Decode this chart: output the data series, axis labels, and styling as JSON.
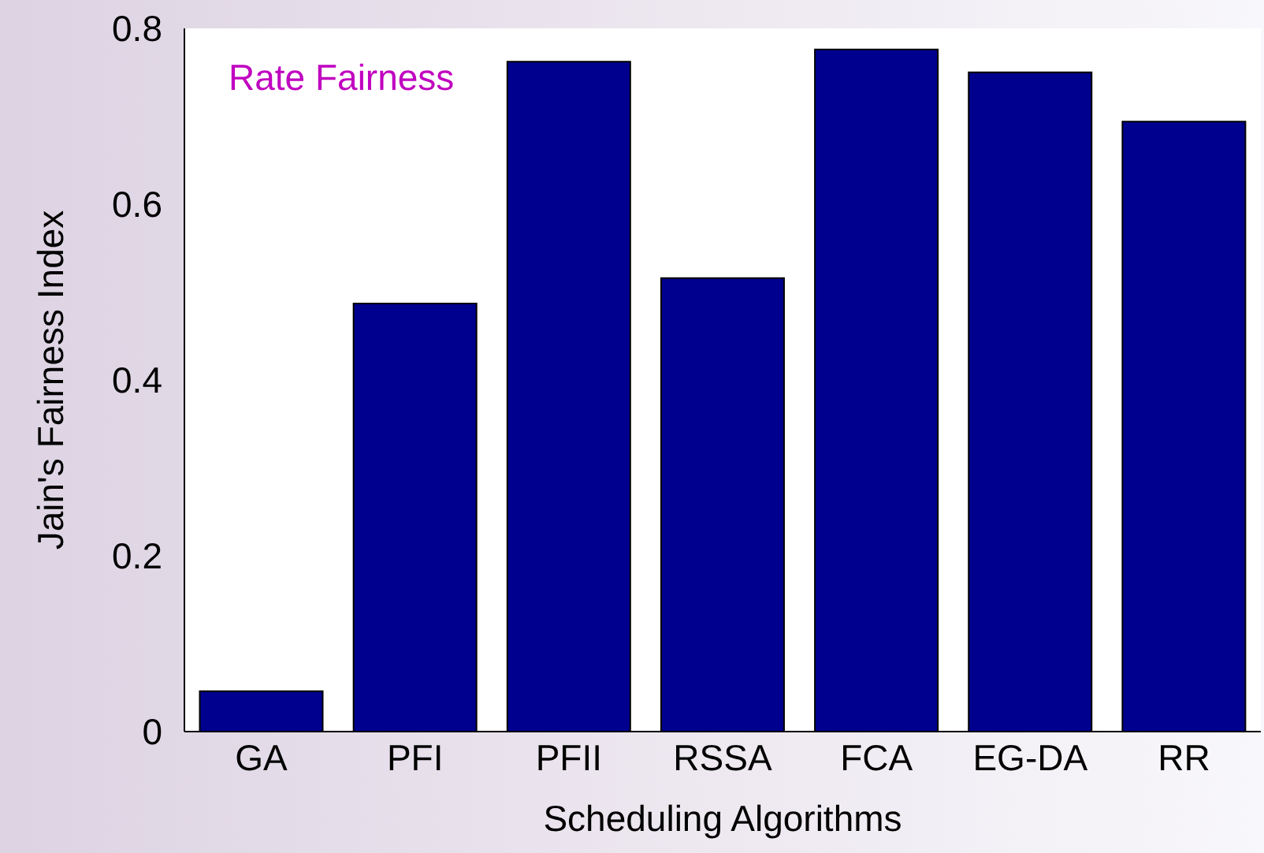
{
  "chart_data": {
    "type": "bar",
    "xlabel": "Scheduling Algorithms",
    "ylabel": "Jain's Fairness Index",
    "annotations": [
      "Rate Fairness"
    ],
    "categories": [
      "GA",
      "PFI",
      "PFII",
      "RSSA",
      "FCA",
      "EG-DA",
      "RR"
    ],
    "values": [
      0.046,
      0.487,
      0.762,
      0.516,
      0.776,
      0.75,
      0.694
    ],
    "color": "#00008f",
    "ylim": [
      0,
      0.8
    ],
    "yticks": [
      0,
      0.2,
      0.4,
      0.6,
      0.8
    ]
  }
}
